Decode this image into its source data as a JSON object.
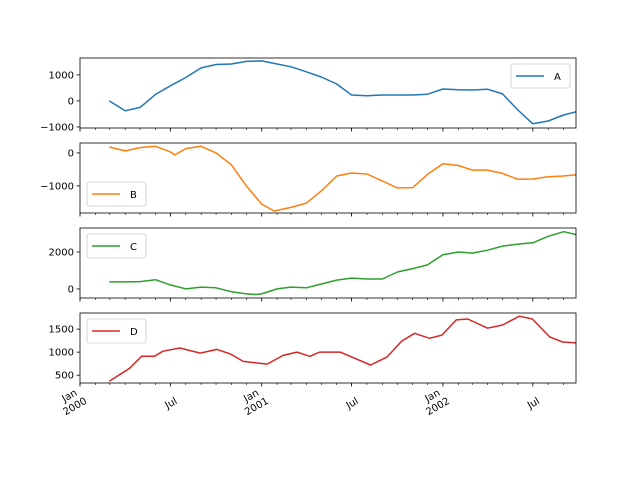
{
  "chart_data": {
    "type": "line",
    "layout": "4 stacked subplots, shared x-axis",
    "xlim": [
      "2000-01-01",
      "2002-09-26"
    ],
    "xticks": [
      {
        "date": "2000-01-01",
        "lines": [
          "Jan",
          "2000"
        ]
      },
      {
        "date": "2000-07-01",
        "lines": [
          "Jul"
        ]
      },
      {
        "date": "2001-01-01",
        "lines": [
          "Jan",
          "2001"
        ]
      },
      {
        "date": "2001-07-01",
        "lines": [
          "Jul"
        ]
      },
      {
        "date": "2002-01-01",
        "lines": [
          "Jan",
          "2002"
        ]
      },
      {
        "date": "2002-07-01",
        "lines": [
          "Jul"
        ]
      }
    ],
    "minor_ticks": "monthly",
    "grid": false,
    "subplots": [
      {
        "name": "A",
        "color": "#1f77b4",
        "legend": "upper-right",
        "ylim": [
          -1040,
          1650
        ],
        "yticks": [
          -1000,
          0,
          1000
        ],
        "ytick_labels": [
          "−1000",
          "0",
          "1000"
        ],
        "points": [
          [
            "2000-02-29",
            0
          ],
          [
            "2000-04-01",
            -380
          ],
          [
            "2000-05-01",
            -250
          ],
          [
            "2000-06-01",
            250
          ],
          [
            "2000-07-01",
            580
          ],
          [
            "2000-08-01",
            900
          ],
          [
            "2000-09-01",
            1270
          ],
          [
            "2000-10-01",
            1400
          ],
          [
            "2000-11-01",
            1420
          ],
          [
            "2000-12-01",
            1520
          ],
          [
            "2001-01-01",
            1540
          ],
          [
            "2001-02-01",
            1420
          ],
          [
            "2001-03-01",
            1310
          ],
          [
            "2001-04-01",
            1120
          ],
          [
            "2001-05-01",
            920
          ],
          [
            "2001-06-01",
            650
          ],
          [
            "2001-07-01",
            230
          ],
          [
            "2001-08-01",
            200
          ],
          [
            "2001-09-01",
            230
          ],
          [
            "2001-10-01",
            230
          ],
          [
            "2001-11-01",
            230
          ],
          [
            "2001-12-01",
            260
          ],
          [
            "2002-01-01",
            460
          ],
          [
            "2002-02-01",
            430
          ],
          [
            "2002-03-01",
            420
          ],
          [
            "2002-04-01",
            450
          ],
          [
            "2002-05-01",
            270
          ],
          [
            "2002-06-01",
            -350
          ],
          [
            "2002-07-01",
            -880
          ],
          [
            "2002-08-01",
            -770
          ],
          [
            "2002-09-01",
            -540
          ],
          [
            "2002-09-26",
            -420
          ]
        ]
      },
      {
        "name": "B",
        "color": "#ff7f0e",
        "legend": "lower-left",
        "ylim": [
          -1820,
          300
        ],
        "yticks": [
          -1000,
          0
        ],
        "ytick_labels": [
          "−1000",
          "0"
        ],
        "points": [
          [
            "2000-02-29",
            180
          ],
          [
            "2000-04-01",
            60
          ],
          [
            "2000-05-01",
            160
          ],
          [
            "2000-06-01",
            200
          ],
          [
            "2000-07-01",
            30
          ],
          [
            "2000-07-10",
            -60
          ],
          [
            "2000-08-01",
            130
          ],
          [
            "2000-09-01",
            200
          ],
          [
            "2000-10-01",
            0
          ],
          [
            "2000-11-01",
            -360
          ],
          [
            "2000-12-01",
            -1000
          ],
          [
            "2001-01-01",
            -1550
          ],
          [
            "2001-01-26",
            -1760
          ],
          [
            "2001-03-01",
            -1650
          ],
          [
            "2001-04-01",
            -1520
          ],
          [
            "2001-05-01",
            -1150
          ],
          [
            "2001-06-01",
            -700
          ],
          [
            "2001-07-01",
            -610
          ],
          [
            "2001-08-01",
            -640
          ],
          [
            "2001-09-01",
            -850
          ],
          [
            "2001-10-01",
            -1060
          ],
          [
            "2001-11-01",
            -1050
          ],
          [
            "2001-12-01",
            -650
          ],
          [
            "2002-01-01",
            -330
          ],
          [
            "2002-02-01",
            -380
          ],
          [
            "2002-03-01",
            -520
          ],
          [
            "2002-04-01",
            -520
          ],
          [
            "2002-05-01",
            -620
          ],
          [
            "2002-06-01",
            -800
          ],
          [
            "2002-07-01",
            -790
          ],
          [
            "2002-08-01",
            -720
          ],
          [
            "2002-09-01",
            -700
          ],
          [
            "2002-09-26",
            -660
          ]
        ]
      },
      {
        "name": "C",
        "color": "#2ca02c",
        "legend": "upper-left",
        "ylim": [
          -490,
          3300
        ],
        "yticks": [
          0,
          2000
        ],
        "ytick_labels": [
          "0",
          "2000"
        ],
        "points": [
          [
            "2000-02-29",
            380
          ],
          [
            "2000-04-01",
            380
          ],
          [
            "2000-05-01",
            400
          ],
          [
            "2000-06-01",
            500
          ],
          [
            "2000-07-01",
            220
          ],
          [
            "2000-08-01",
            0
          ],
          [
            "2000-09-01",
            100
          ],
          [
            "2000-10-01",
            60
          ],
          [
            "2000-11-01",
            -150
          ],
          [
            "2000-12-01",
            -270
          ],
          [
            "2000-12-20",
            -300
          ],
          [
            "2001-01-01",
            -270
          ],
          [
            "2001-02-01",
            0
          ],
          [
            "2001-03-01",
            100
          ],
          [
            "2001-04-01",
            60
          ],
          [
            "2001-05-01",
            270
          ],
          [
            "2001-06-01",
            480
          ],
          [
            "2001-07-01",
            590
          ],
          [
            "2001-08-01",
            540
          ],
          [
            "2001-09-01",
            540
          ],
          [
            "2001-10-01",
            920
          ],
          [
            "2001-11-01",
            1100
          ],
          [
            "2001-12-01",
            1300
          ],
          [
            "2002-01-01",
            1850
          ],
          [
            "2002-02-01",
            2000
          ],
          [
            "2002-03-01",
            1940
          ],
          [
            "2002-04-01",
            2100
          ],
          [
            "2002-05-01",
            2320
          ],
          [
            "2002-06-01",
            2430
          ],
          [
            "2002-07-01",
            2500
          ],
          [
            "2002-08-01",
            2850
          ],
          [
            "2002-09-01",
            3100
          ],
          [
            "2002-09-26",
            2950
          ]
        ]
      },
      {
        "name": "D",
        "color": "#d62728",
        "legend": "upper-left",
        "ylim": [
          330,
          1850
        ],
        "yticks": [
          500,
          1000,
          1500
        ],
        "ytick_labels": [
          "500",
          "1000",
          "1500"
        ],
        "points": [
          [
            "2000-02-29",
            370
          ],
          [
            "2000-04-10",
            650
          ],
          [
            "2000-05-04",
            910
          ],
          [
            "2000-05-30",
            910
          ],
          [
            "2000-06-16",
            1020
          ],
          [
            "2000-07-20",
            1090
          ],
          [
            "2000-08-30",
            980
          ],
          [
            "2000-10-03",
            1060
          ],
          [
            "2000-10-30",
            960
          ],
          [
            "2000-11-25",
            800
          ],
          [
            "2001-01-12",
            740
          ],
          [
            "2001-02-13",
            930
          ],
          [
            "2001-03-13",
            1000
          ],
          [
            "2001-04-08",
            910
          ],
          [
            "2001-04-28",
            1000
          ],
          [
            "2001-06-08",
            1000
          ],
          [
            "2001-08-08",
            720
          ],
          [
            "2001-09-10",
            890
          ],
          [
            "2001-10-10",
            1240
          ],
          [
            "2001-11-05",
            1410
          ],
          [
            "2001-12-05",
            1300
          ],
          [
            "2001-12-30",
            1370
          ],
          [
            "2002-01-28",
            1700
          ],
          [
            "2002-02-20",
            1720
          ],
          [
            "2002-04-01",
            1520
          ],
          [
            "2002-05-01",
            1590
          ],
          [
            "2002-06-04",
            1780
          ],
          [
            "2002-06-30",
            1720
          ],
          [
            "2002-08-04",
            1330
          ],
          [
            "2002-08-30",
            1220
          ],
          [
            "2002-09-26",
            1200
          ]
        ]
      }
    ]
  }
}
